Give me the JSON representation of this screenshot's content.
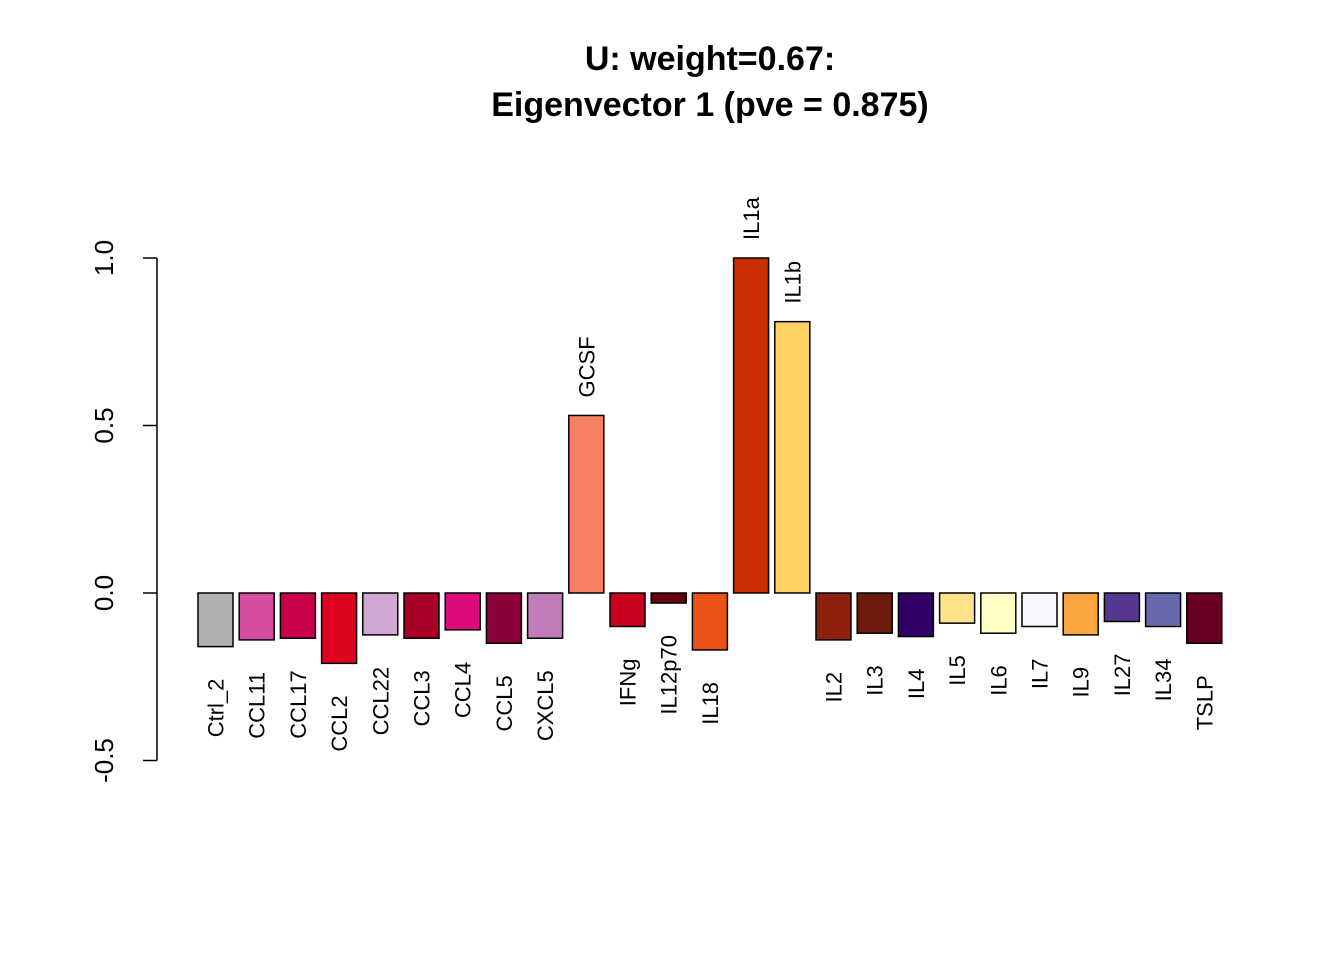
{
  "chart_data": {
    "type": "bar",
    "title": "U: weight=0.67:",
    "subtitle": "Eigenvector 1 (pve = 0.875)",
    "xlabel": "",
    "ylabel": "",
    "ylim": [
      -0.5,
      1.0
    ],
    "yticks": [
      "-0.5",
      "0.0",
      "0.5",
      "1.0"
    ],
    "grid": false,
    "legend": "none",
    "categories": [
      "Ctrl_2",
      "CCL11",
      "CCL17",
      "CCL2",
      "CCL22",
      "CCL3",
      "CCL4",
      "CCL5",
      "CXCL5",
      "GCSF",
      "IFNg",
      "IL12p70",
      "IL18",
      "IL1a",
      "IL1b",
      "IL2",
      "IL3",
      "IL4",
      "IL5",
      "IL6",
      "IL7",
      "IL9",
      "IL27",
      "IL34",
      "TSLP"
    ],
    "values": [
      -0.16,
      -0.14,
      -0.135,
      -0.21,
      -0.125,
      -0.135,
      -0.11,
      -0.15,
      -0.135,
      0.53,
      -0.1,
      -0.03,
      -0.17,
      1.0,
      0.81,
      -0.14,
      -0.12,
      -0.13,
      -0.09,
      -0.12,
      -0.1,
      -0.125,
      -0.085,
      -0.1,
      -0.15
    ],
    "colors": [
      "#B0B0B0",
      "#D64CA0",
      "#C70049",
      "#DD0420",
      "#CFA8D3",
      "#A80026",
      "#DE0B7D",
      "#8A0039",
      "#C07DBA",
      "#F77F63",
      "#C8001F",
      "#67000D",
      "#EB5215",
      "#CB2E05",
      "#FFD262",
      "#8F200D",
      "#6D1B0D",
      "#300066",
      "#FFE38B",
      "#FFFEC5",
      "#F8F6FB",
      "#FCA43D",
      "#55378F",
      "#6868AF",
      "#6A0021"
    ]
  }
}
